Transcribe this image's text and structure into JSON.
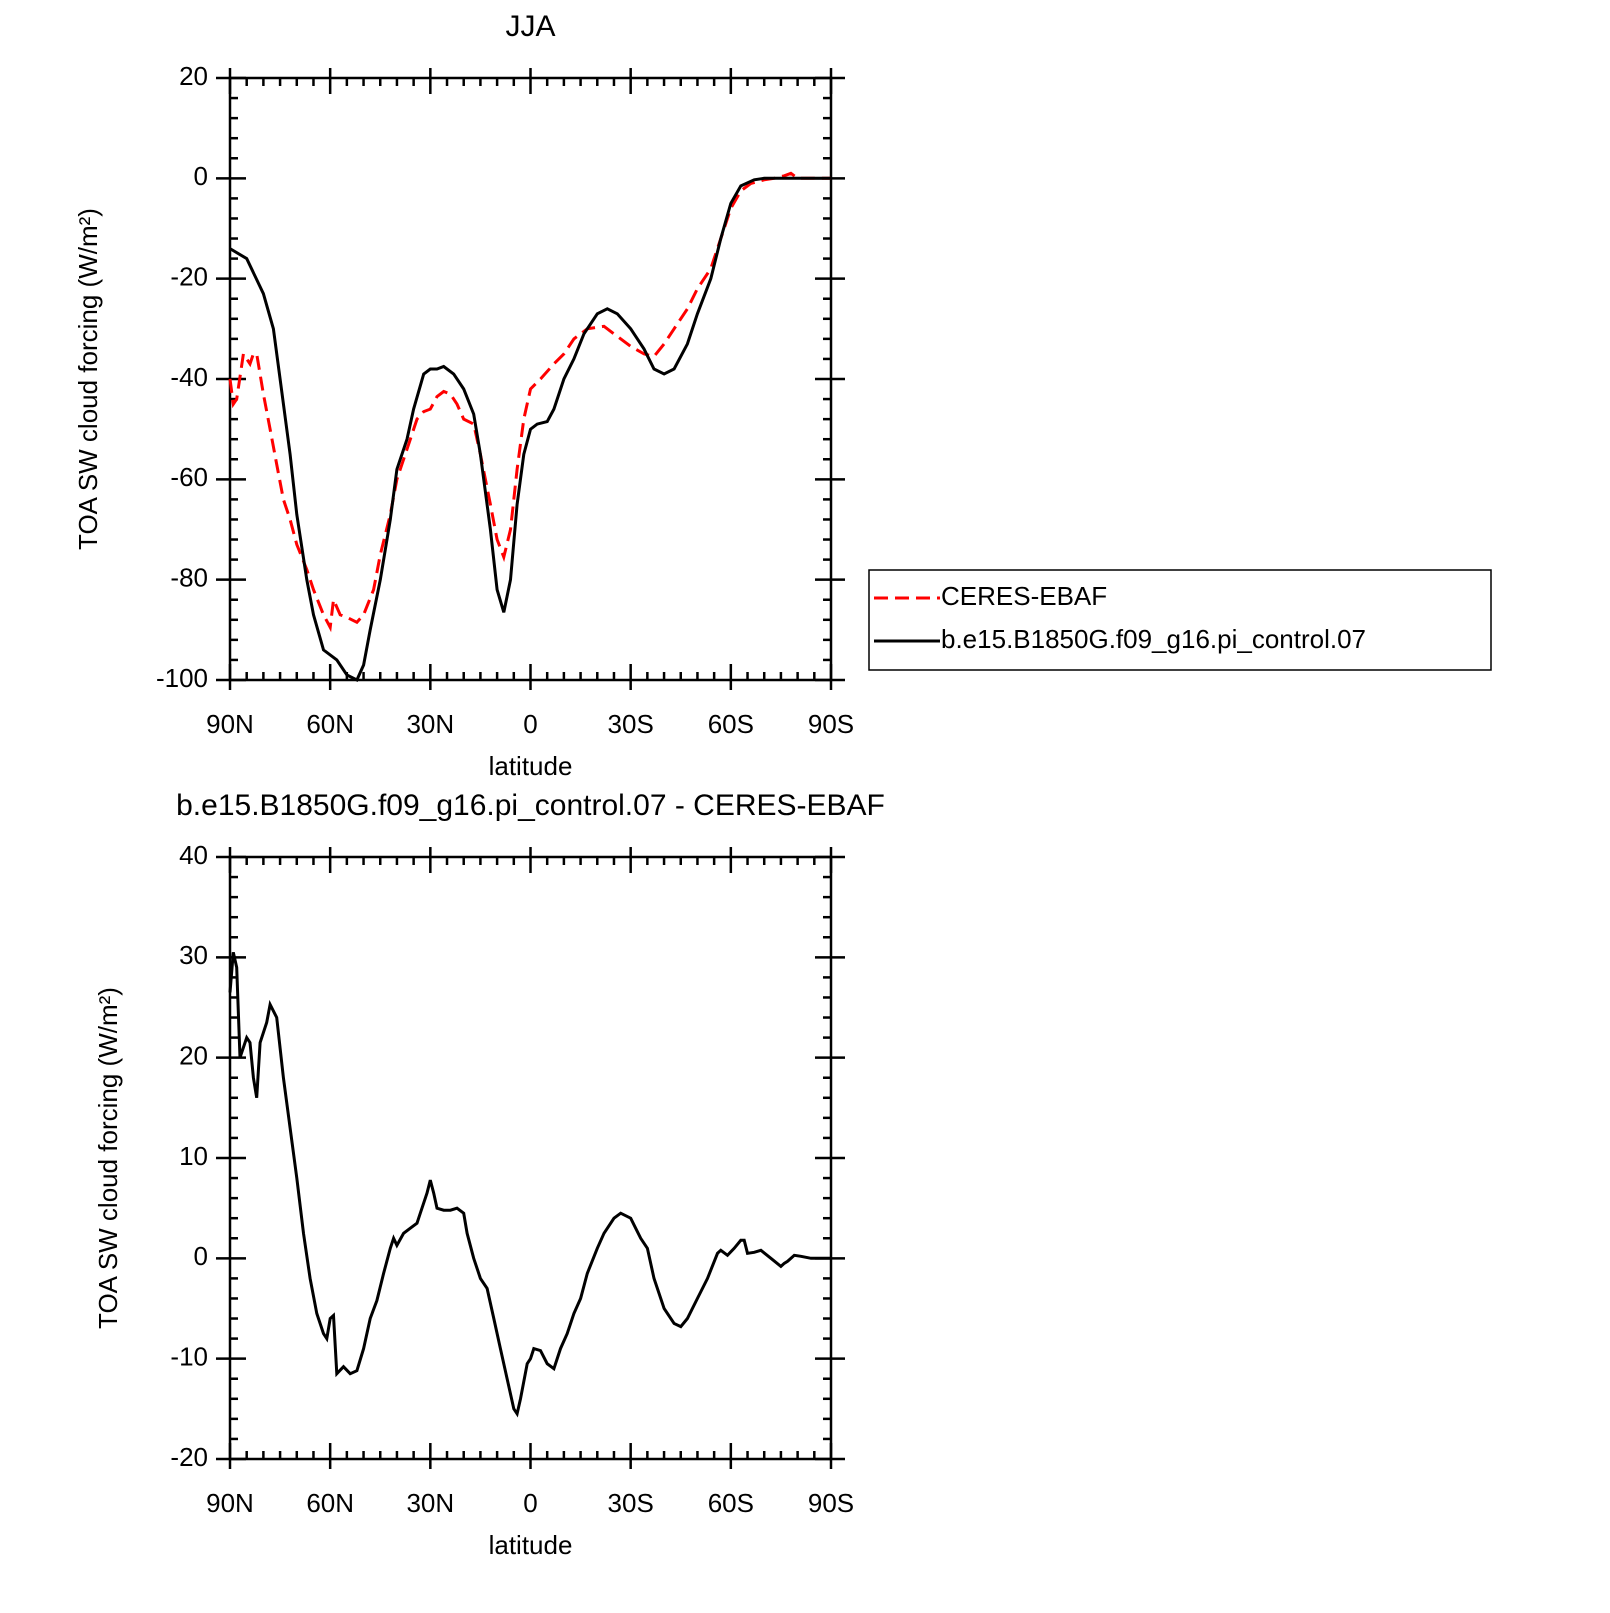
{
  "chart_data": [
    {
      "type": "line",
      "title": "JJA",
      "xlabel": "latitude",
      "ylabel": "TOA SW cloud forcing (W/m²)",
      "xlim": [
        90,
        -90
      ],
      "xticks": [
        {
          "value": 90,
          "label": "90N"
        },
        {
          "value": 60,
          "label": "60N"
        },
        {
          "value": 30,
          "label": "30N"
        },
        0,
        {
          "value": -30,
          "label": "30S"
        },
        {
          "value": -60,
          "label": "60S"
        },
        {
          "value": -90,
          "label": "90S"
        }
      ],
      "ylim": [
        -100,
        20
      ],
      "yticks": [
        -100,
        -80,
        -60,
        -40,
        -20,
        0,
        20
      ],
      "legend": "right",
      "series": [
        {
          "name": "CERES-EBAF",
          "color": "#ff0000",
          "linestyle": "dashed",
          "x": [
            90,
            89,
            88,
            86,
            84,
            83,
            82,
            80,
            78,
            76,
            74,
            72,
            70,
            67,
            65,
            62,
            60,
            59,
            57,
            55,
            52,
            50,
            47,
            45,
            42,
            40,
            37,
            34,
            32,
            30,
            28,
            26,
            24,
            22,
            20,
            17,
            15,
            12,
            10,
            8,
            6,
            4,
            2,
            0,
            -3,
            -7,
            -10,
            -13,
            -17,
            -22,
            -25,
            -30,
            -34,
            -37,
            -40,
            -43,
            -47,
            -50,
            -54,
            -57,
            -60,
            -63,
            -66,
            -70,
            -73,
            -76,
            -78,
            -80,
            -90
          ],
          "values": [
            -40,
            -45,
            -44,
            -35,
            -37,
            -35,
            -35,
            -43,
            -50,
            -57,
            -64,
            -68,
            -73,
            -78,
            -82,
            -87,
            -89.5,
            -84,
            -87,
            -87.5,
            -88.5,
            -87,
            -82,
            -75,
            -67,
            -60,
            -54,
            -48,
            -46.5,
            -46,
            -43.5,
            -42.5,
            -43,
            -45,
            -48,
            -49,
            -55,
            -65,
            -72,
            -75.5,
            -70,
            -58,
            -48,
            -42,
            -40,
            -37,
            -35,
            -32,
            -30,
            -29.5,
            -31,
            -33.5,
            -35,
            -35.5,
            -33,
            -30,
            -26,
            -22,
            -18,
            -12,
            -6,
            -2.5,
            -1,
            -0.3,
            0,
            0.5,
            1,
            0,
            0
          ]
        },
        {
          "name": "b.e15.B1850G.f09_g16.pi_control.07",
          "color": "#000000",
          "linestyle": "solid",
          "x": [
            90,
            85,
            80,
            77,
            75,
            72,
            70,
            67,
            65,
            62,
            58,
            55,
            52,
            50,
            48,
            45,
            42,
            40,
            37,
            35,
            32,
            30,
            28,
            26,
            23,
            20,
            17,
            15,
            12,
            10,
            8,
            6,
            4,
            2,
            0,
            -2,
            -5,
            -7,
            -10,
            -13,
            -16,
            -20,
            -23,
            -26,
            -30,
            -34,
            -37,
            -40,
            -43,
            -47,
            -50,
            -54,
            -57,
            -60,
            -63,
            -67,
            -70,
            -90
          ],
          "values": [
            -14,
            -16,
            -23,
            -30,
            -40,
            -55,
            -67,
            -80,
            -87,
            -94,
            -96,
            -99,
            -100,
            -97,
            -90,
            -80,
            -68,
            -58,
            -52,
            -46,
            -39,
            -38,
            -38,
            -37.5,
            -39,
            -42,
            -47,
            -55,
            -70,
            -82,
            -86.5,
            -80,
            -65,
            -55,
            -50,
            -49,
            -48.5,
            -46,
            -40,
            -36,
            -31,
            -27,
            -26,
            -27,
            -30,
            -34,
            -38,
            -39,
            -38,
            -33,
            -27,
            -20,
            -12,
            -5,
            -1.5,
            -0.3,
            0,
            0
          ]
        }
      ]
    },
    {
      "type": "line",
      "title": "b.e15.B1850G.f09_g16.pi_control.07 - CERES-EBAF",
      "xlabel": "latitude",
      "ylabel": "TOA SW cloud forcing (W/m²)",
      "xlim": [
        90,
        -90
      ],
      "xticks": [
        {
          "value": 90,
          "label": "90N"
        },
        {
          "value": 60,
          "label": "60N"
        },
        {
          "value": 30,
          "label": "30N"
        },
        0,
        {
          "value": -30,
          "label": "30S"
        },
        {
          "value": -60,
          "label": "60S"
        },
        {
          "value": -90,
          "label": "90S"
        }
      ],
      "ylim": [
        -20,
        40
      ],
      "yticks": [
        -20,
        -10,
        0,
        10,
        20,
        30,
        40
      ],
      "series": [
        {
          "color": "#000000",
          "linestyle": "solid",
          "x": [
            90,
            89,
            88,
            87,
            85,
            84,
            83,
            82,
            81,
            79,
            78,
            76,
            74,
            72,
            70,
            68,
            66,
            64,
            62,
            61,
            60,
            59,
            58,
            56,
            54,
            52,
            50,
            48,
            46,
            44,
            42,
            41,
            40,
            38,
            36,
            34,
            33,
            31,
            30,
            29,
            28,
            26,
            24,
            22,
            20,
            19,
            17,
            15,
            13,
            11,
            9,
            7,
            5,
            4,
            3,
            1,
            0,
            -1,
            -3,
            -5,
            -7,
            -9,
            -11,
            -13,
            -15,
            -17,
            -20,
            -22,
            -25,
            -27,
            -30,
            -33,
            -35,
            -37,
            -40,
            -43,
            -45,
            -47,
            -50,
            -53,
            -56,
            -57,
            -59,
            -61,
            -63,
            -64,
            -65,
            -67,
            -69,
            -72,
            -75,
            -76,
            -77,
            -79,
            -81,
            -84,
            -90
          ],
          "values": [
            26.5,
            30.5,
            29,
            20,
            22,
            21.5,
            18,
            16,
            21.5,
            23.5,
            25.3,
            24,
            18,
            13,
            8,
            2.5,
            -2,
            -5.5,
            -7.5,
            -8,
            -6,
            -5.7,
            -11.5,
            -10.8,
            -11.5,
            -11.2,
            -9,
            -6,
            -4.2,
            -1.5,
            1,
            2,
            1.3,
            2.5,
            3,
            3.5,
            4.5,
            6.5,
            7.8,
            6.5,
            5,
            4.8,
            4.8,
            5,
            4.5,
            2.5,
            0,
            -2,
            -3,
            -6,
            -9,
            -12,
            -15,
            -15.5,
            -14,
            -10.5,
            -10,
            -9,
            -9.2,
            -10.5,
            -11,
            -9,
            -7.5,
            -5.5,
            -4,
            -1.5,
            1,
            2.5,
            4,
            4.5,
            4,
            2,
            1,
            -2,
            -5,
            -6.5,
            -6.8,
            -6,
            -4,
            -2,
            0.5,
            0.8,
            0.3,
            1,
            1.8,
            1.8,
            0.5,
            0.6,
            0.8,
            0,
            -0.8,
            -0.5,
            -0.3,
            0.3,
            0.2,
            0,
            0
          ]
        }
      ]
    }
  ]
}
